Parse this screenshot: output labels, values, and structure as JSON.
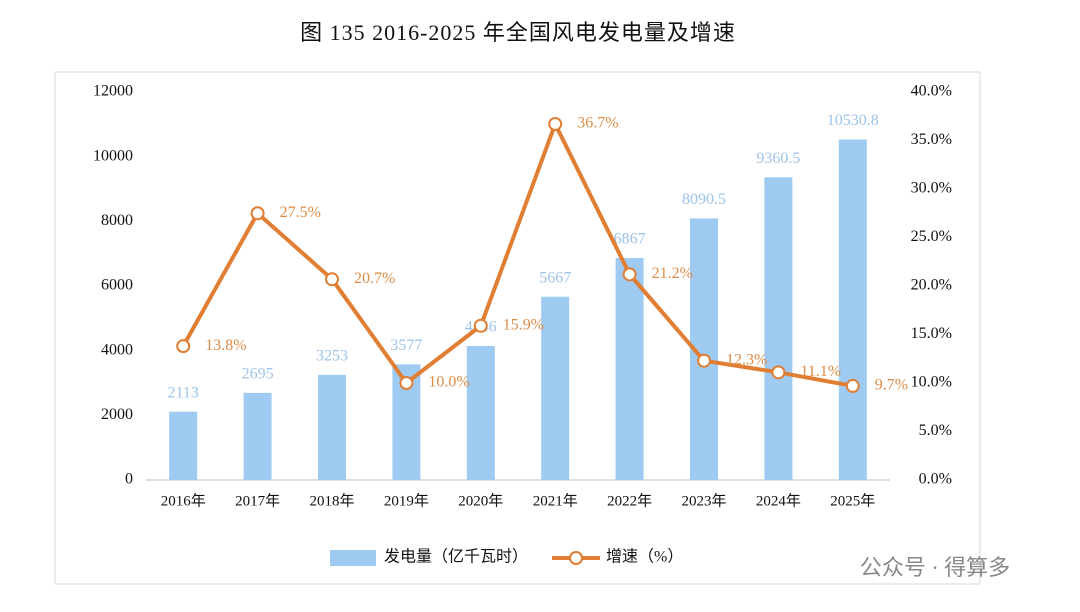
{
  "chart_data": {
    "type": "bar",
    "title": "图 135 2016-2025 年全国风电发电量及增速",
    "categories": [
      "2016年",
      "2017年",
      "2018年",
      "2019年",
      "2020年",
      "2021年",
      "2022年",
      "2023年",
      "2024年",
      "2025年"
    ],
    "series": [
      {
        "name": "发电量（亿千瓦时）",
        "type": "bar",
        "color": "#9fcbf3",
        "label_color": "#9cc3e8",
        "values": [
          2113,
          2695,
          3253,
          3577,
          4146,
          5667,
          6867,
          8090.5,
          9360.5,
          10530.8
        ]
      },
      {
        "name": "增速（%）",
        "type": "line",
        "axis": "y2",
        "color": "#e07e33",
        "label_color": "#dc8c45",
        "values": [
          13.8,
          27.5,
          20.7,
          10.0,
          15.9,
          36.7,
          21.2,
          12.3,
          11.1,
          9.7
        ],
        "value_labels": [
          "13.8%",
          "27.5%",
          "20.7%",
          "10.0%",
          "15.9%",
          "36.7%",
          "21.2%",
          "12.3%",
          "11.1%",
          "9.7%"
        ]
      }
    ],
    "ylim": [
      0,
      12000
    ],
    "yticks": [
      0,
      2000,
      4000,
      6000,
      8000,
      10000,
      12000
    ],
    "y2lim": [
      0,
      40
    ],
    "y2ticks": [
      {
        "value": 0,
        "label": "0.0%"
      },
      {
        "value": 5,
        "label": "5.0%"
      },
      {
        "value": 10,
        "label": "10.0%"
      },
      {
        "value": 15,
        "label": "15.0%"
      },
      {
        "value": 20,
        "label": "20.0%"
      },
      {
        "value": 25,
        "label": "25.0%"
      },
      {
        "value": 30,
        "label": "30.0%"
      },
      {
        "value": 35,
        "label": "35.0%"
      },
      {
        "value": 40,
        "label": "40.0%"
      }
    ],
    "grid": false,
    "watermark": "公众号 · 得算多"
  }
}
